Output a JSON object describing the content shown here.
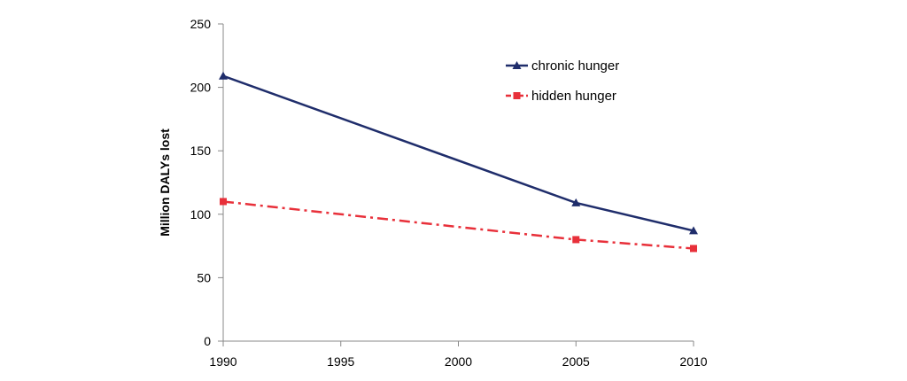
{
  "chart_data": {
    "type": "line",
    "title": "",
    "xlabel": "",
    "ylabel": "Million  DALYs lost",
    "x": [
      1990,
      2005,
      2010
    ],
    "xticks": [
      1990,
      1995,
      2000,
      2005,
      2010
    ],
    "xlim": [
      1990,
      2010
    ],
    "yticks": [
      0,
      50,
      100,
      150,
      200,
      250
    ],
    "ylim": [
      0,
      250
    ],
    "grid": false,
    "legend_position": "top-right",
    "series": [
      {
        "name": "chronic hunger",
        "values": [
          209,
          109,
          87
        ],
        "color": "#1f2d6b",
        "marker": "triangle",
        "line_style": "solid"
      },
      {
        "name": "hidden hunger",
        "values": [
          110,
          80,
          73
        ],
        "color": "#e8303a",
        "marker": "square",
        "line_style": "dash-dot"
      }
    ]
  }
}
